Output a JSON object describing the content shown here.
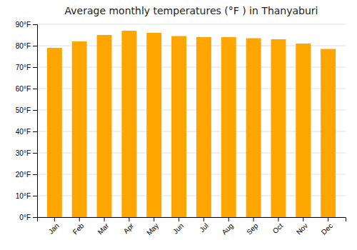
{
  "chart_data": {
    "type": "bar",
    "title": "Average monthly temperatures (°F ) in Thanyaburi",
    "categories": [
      "Jan",
      "Feb",
      "Mar",
      "Apr",
      "May",
      "Jun",
      "Jul",
      "Aug",
      "Sep",
      "Oct",
      "Nov",
      "Dec"
    ],
    "values": [
      79,
      82,
      85,
      87,
      86,
      84.5,
      84,
      84,
      83.5,
      83,
      81,
      78.5
    ],
    "color": "#FFA500",
    "ylim": [
      0,
      90
    ],
    "yticks": [
      {
        "value": 0,
        "label": "0°F"
      },
      {
        "value": 10,
        "label": "10°F"
      },
      {
        "value": 20,
        "label": "20°F"
      },
      {
        "value": 30,
        "label": "30°F"
      },
      {
        "value": 40,
        "label": "40°F"
      },
      {
        "value": 50,
        "label": "50°F"
      },
      {
        "value": 60,
        "label": "60°F"
      },
      {
        "value": 70,
        "label": "70°F"
      },
      {
        "value": 80,
        "label": "80°F"
      },
      {
        "value": 90,
        "label": "90°F"
      }
    ],
    "grid": true
  }
}
